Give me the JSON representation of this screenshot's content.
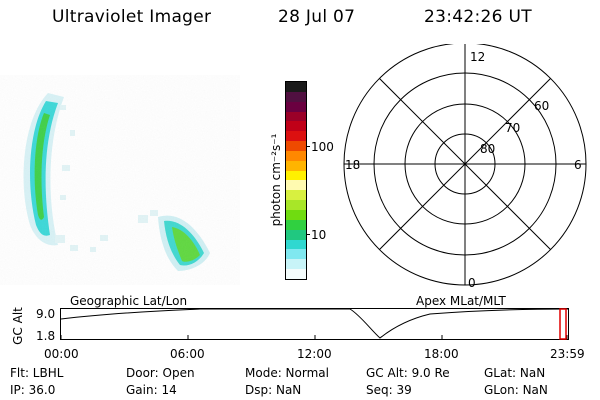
{
  "header": {
    "instrument": "Ultraviolet Imager",
    "date": "28 Jul 07",
    "time": "23:42:26 UT"
  },
  "colorbar": {
    "unit_label": "photon cm⁻²s⁻¹",
    "tick_high": "100",
    "tick_low": "10",
    "colors_top_to_bottom": [
      "#1a1a1a",
      "#501040",
      "#6a0040",
      "#9a0028",
      "#c00018",
      "#dc1010",
      "#ee4a00",
      "#ff8800",
      "#ffb400",
      "#fff000",
      "#fffab0",
      "#d8f040",
      "#a8e628",
      "#70dc10",
      "#30d040",
      "#20c880",
      "#30d8d0",
      "#80e8f0",
      "#c8f4f8",
      "#f4fcfc"
    ]
  },
  "polar_plot": {
    "label_top": "12",
    "label_left": "18",
    "label_right": "6",
    "label_bottom": "0",
    "lat_labels": [
      "80",
      "70",
      "60"
    ]
  },
  "timeline": {
    "ylabel": "GC Alt",
    "y_top": "9.0",
    "y_bottom": "1.8",
    "left_title": "Geographic Lat/Lon",
    "right_title": "Apex  MLat/MLT",
    "ticks": [
      "00:00",
      "06:00",
      "12:00",
      "18:00",
      "23:59"
    ]
  },
  "status": {
    "flt": "Flt:  LBHL",
    "ip": "IP:  36.0",
    "door": "Door:  Open",
    "gain": "Gain:  14",
    "mode": "Mode:  Normal",
    "dsp": "Dsp:        NaN",
    "gcalt": "GC Alt:  9.0 Re",
    "seq": "Seq:  39",
    "glat": "GLat:       NaN",
    "glon": "GLon:       NaN"
  }
}
